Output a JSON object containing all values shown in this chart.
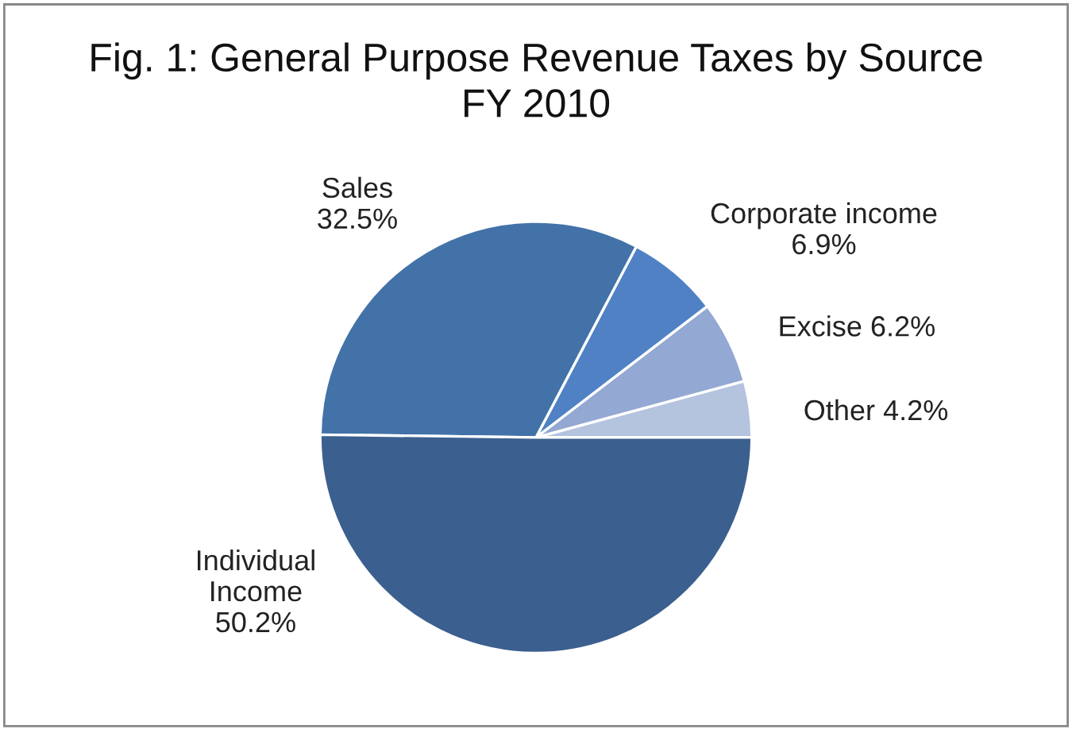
{
  "chart_data": {
    "type": "pie",
    "title": "Fig. 1: General Purpose Revenue Taxes by Source\nFY 2010",
    "categories": [
      "Other",
      "Excise",
      "Corporate income",
      "Sales",
      "Individual\nIncome"
    ],
    "values": [
      4.2,
      6.2,
      6.9,
      32.5,
      50.2
    ],
    "colors": [
      "#b4c3de",
      "#93a8d2",
      "#4f81c4",
      "#4272a8",
      "#3b5f8e"
    ],
    "value_labels": [
      "4.2%",
      "6.2%",
      "6.9%",
      "32.5%",
      "50.2%"
    ],
    "legend": false
  }
}
